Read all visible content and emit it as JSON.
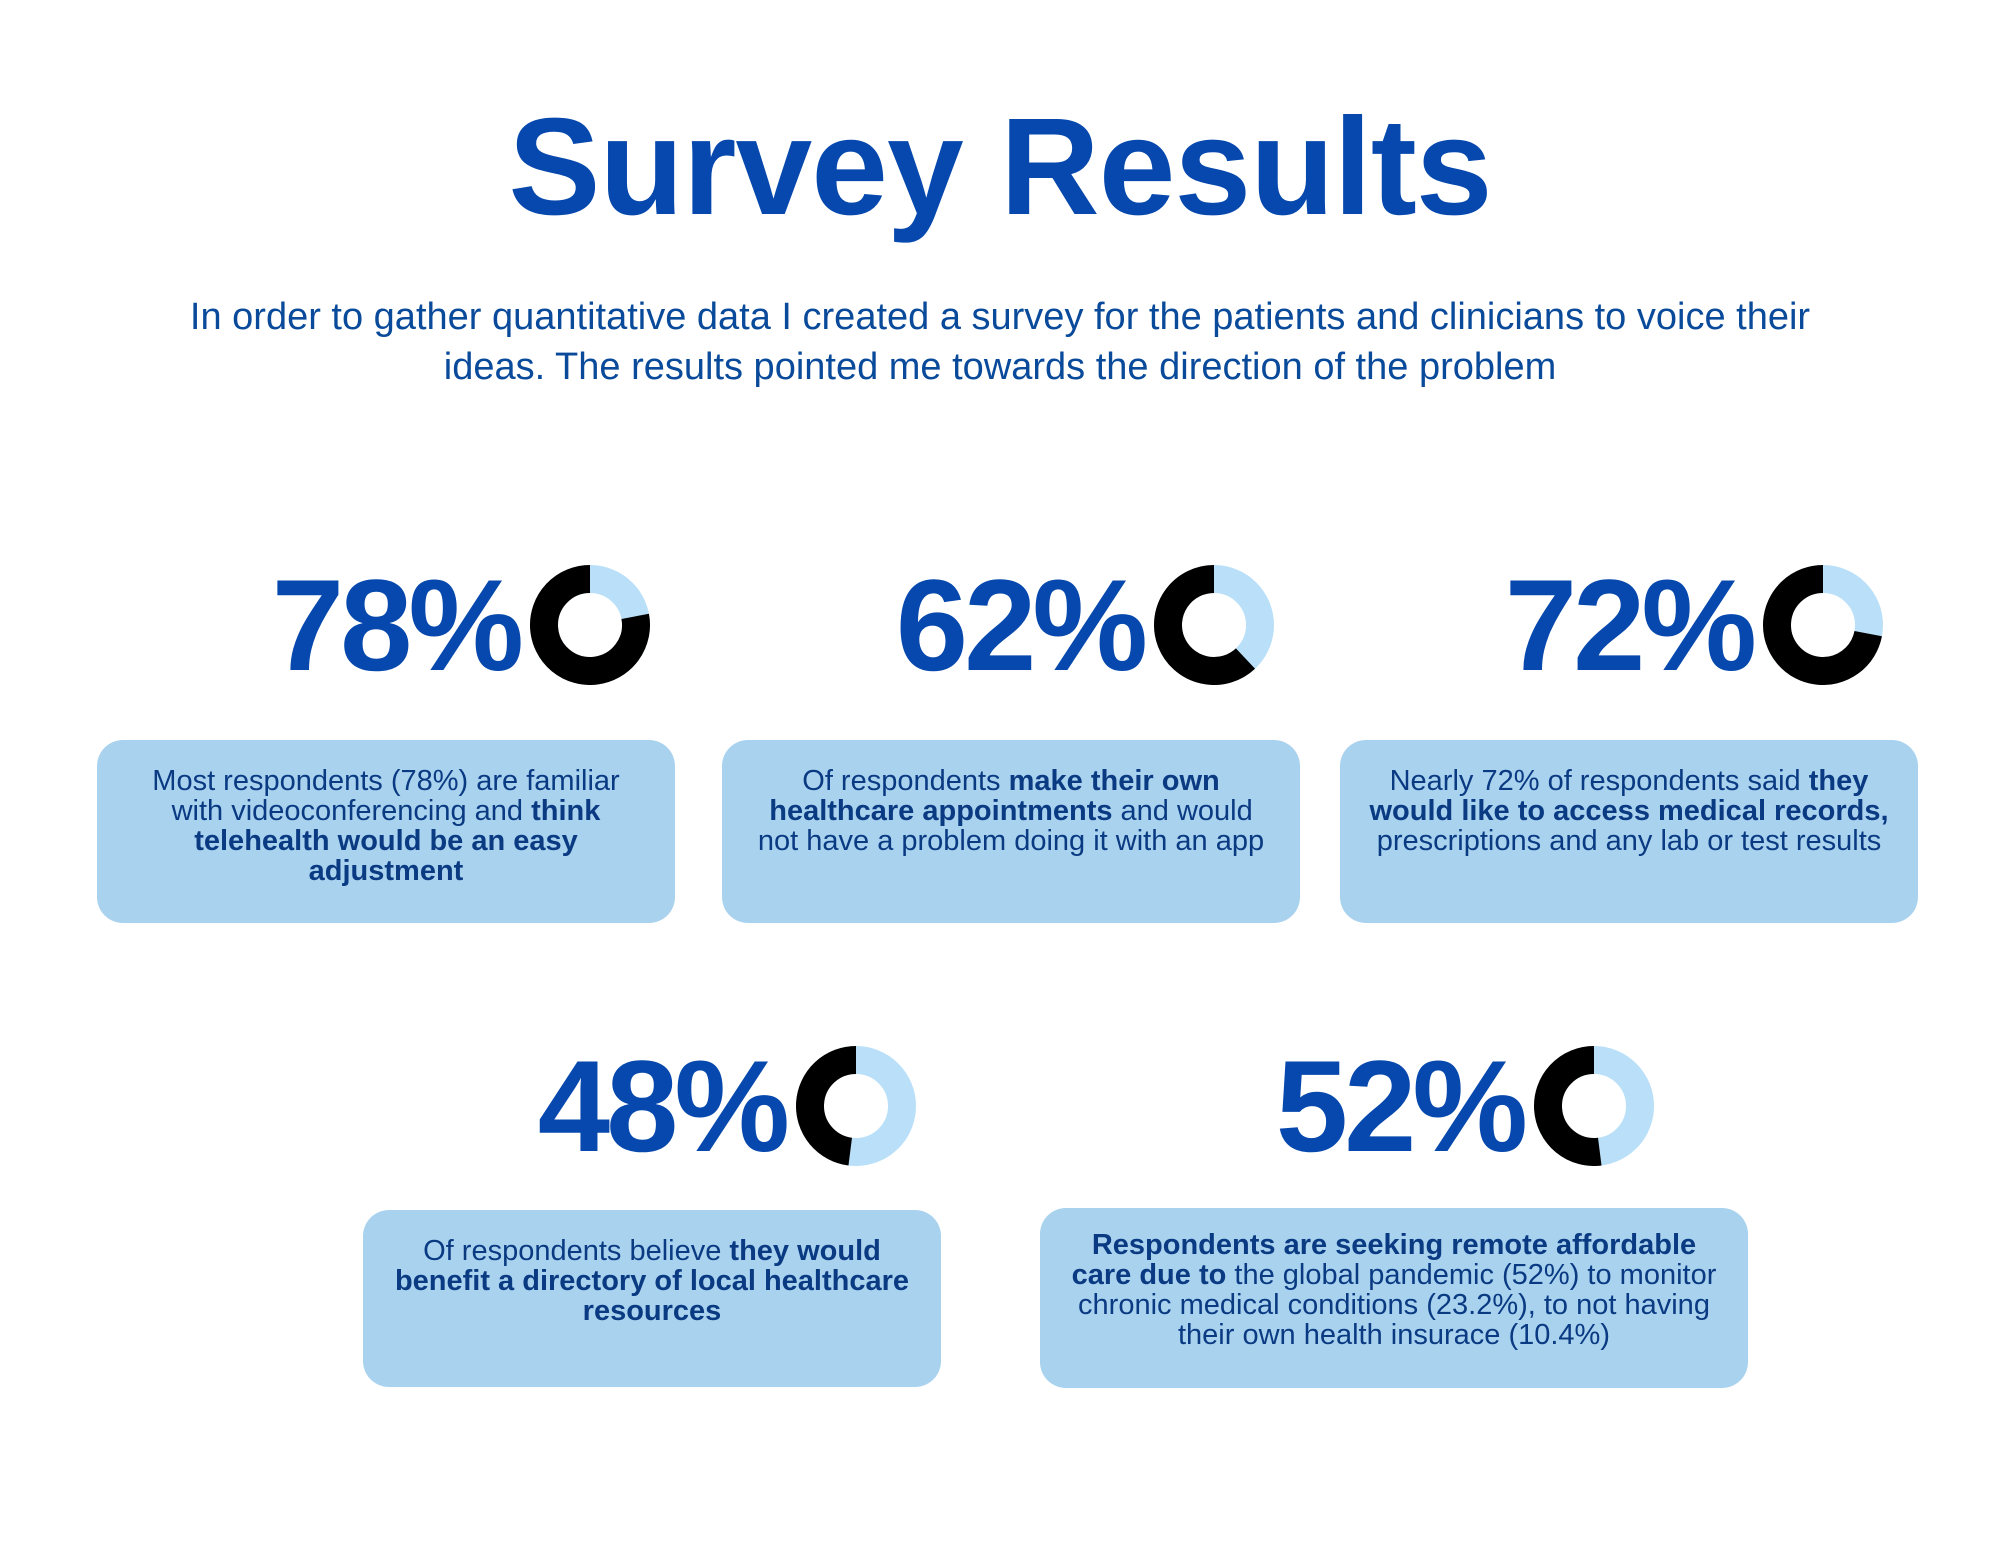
{
  "header": {
    "title": "Survey Results",
    "subtitle": "In order to gather quantitative data I created a survey for the patients and clinicians to voice their ideas. The results pointed me towards the direction of the problem"
  },
  "colors": {
    "title": "#0648ad",
    "card_bg": "#a9d2ef",
    "donut_filled": "#000000",
    "donut_remaining": "#b9e0f8"
  },
  "stats": [
    {
      "value_label": "78%",
      "value": 78,
      "text_parts": [
        {
          "text": "Most respondents (78%) are familiar with videoconferencing and ",
          "bold": false
        },
        {
          "text": "think telehealth would be an easy adjustment",
          "bold": true
        }
      ]
    },
    {
      "value_label": "62%",
      "value": 62,
      "text_parts": [
        {
          "text": "Of respondents ",
          "bold": false
        },
        {
          "text": "make their own healthcare appointments",
          "bold": true
        },
        {
          "text": " and would not have a problem doing it with an app",
          "bold": false
        }
      ]
    },
    {
      "value_label": "72%",
      "value": 72,
      "text_parts": [
        {
          "text": "Nearly 72% of respondents said ",
          "bold": false
        },
        {
          "text": "they would like to access medical records,",
          "bold": true
        },
        {
          "text": " prescriptions and any lab or test results",
          "bold": false
        }
      ]
    },
    {
      "value_label": "48%",
      "value": 48,
      "text_parts": [
        {
          "text": "Of respondents believe ",
          "bold": false
        },
        {
          "text": "they would benefit a directory of local healthcare resources",
          "bold": true
        }
      ]
    },
    {
      "value_label": "52%",
      "value": 52,
      "text_parts": [
        {
          "text": "Respondents are seeking remote affordable care due to",
          "bold": true
        },
        {
          "text": " the global pandemic (52%) to monitor chronic medical conditions (23.2%), to not having their own health insurace (10.4%)",
          "bold": false
        }
      ]
    }
  ]
}
